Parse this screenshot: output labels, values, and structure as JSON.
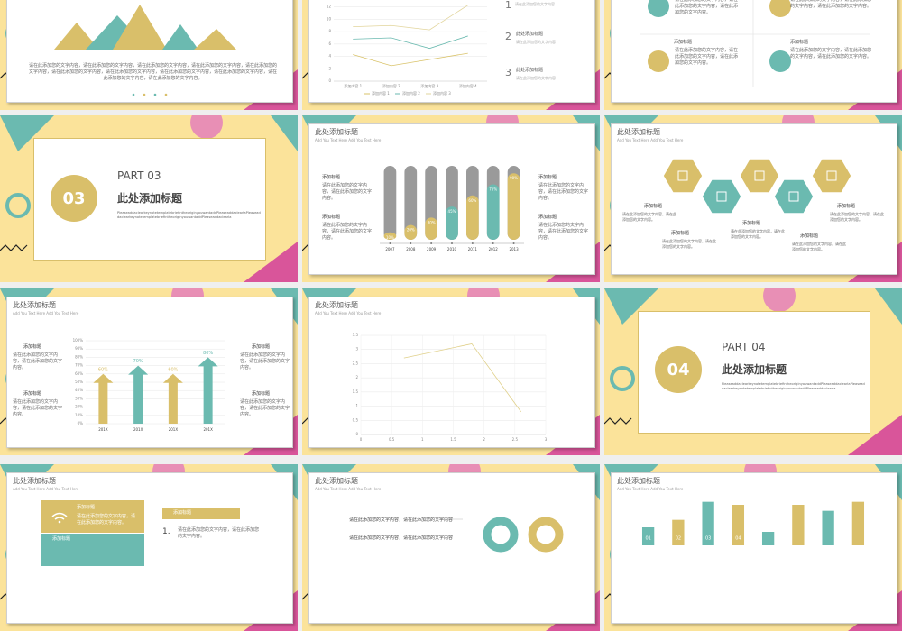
{
  "slides": [
    {
      "body": "请在此添加您的文字内容，请在此添加您的文字内容，请在此添加您的文字内容，请在此添加您的文字内容，请在此添加您的文字内容，请在此添加您的文字内容，请在此添加您的文字内容，请在此添加您的文字内容，请在此添加您的文字内容，请在此添加您的文字内容，请在此添加您的文字内容。"
    },
    {
      "chart_data": {
        "type": "line",
        "categories": [
          "添加内容 1",
          "添加内容 2",
          "添加内容 3",
          "添加内容 4"
        ],
        "series": [
          {
            "name": "添加内容 1",
            "color": "#d9c36a",
            "values": [
              4.3,
              2.5,
              3.5,
              4.5
            ]
          },
          {
            "name": "添加内容 2",
            "color": "#6bbab0",
            "values": [
              6.8,
              7,
              5.3,
              7.3
            ]
          },
          {
            "name": "添加内容 3",
            "color": "#e2d59c",
            "values": [
              8.8,
              9,
              8.3,
              12.3
            ]
          }
        ],
        "ylim": [
          0,
          14
        ],
        "yticks": [
          0,
          2,
          4,
          6,
          8,
          10,
          12
        ],
        "grid": true
      },
      "items": [
        {
          "num": 1,
          "sub": "请在此添加您的文字内容"
        },
        {
          "num": 2,
          "title": "此处添加标题",
          "sub": "请在此添加您的文字内容"
        },
        {
          "num": 3,
          "title": "此处添加标题",
          "sub": "请在此添加您的文字内容"
        }
      ]
    },
    {
      "items": [
        {
          "body": "请在此添加您的文字内容，请在此添加您的文字内容，请在此添加您的文字内容。"
        },
        {
          "body": "请在此添加您的文字内容，请在此添加您的文字内容，请在此添加您的文字内容。"
        },
        {
          "title": "添加标题",
          "body": "请在此添加您的文字内容，请在此添加您的文字内容，请在此添加您的文字内容。"
        },
        {
          "title": "添加标题",
          "body": "请在此添加您的文字内容，请在此添加您的文字内容，请在此添加您的文字内容。"
        }
      ]
    },
    {
      "number": "03",
      "part": "PART 03",
      "title": "此处添加标题",
      "body": "PleaseaddaclearkeynotetemplatebriefintheoriginyouwantaddPleaseaddaclearlaPleaseaddaclearkeynotetemplatebriefintheoriginyouwantaddPleaseaddaclearla"
    },
    {
      "title": "此处添加标题",
      "subtitle": "Add You Text Here Add You Text Here",
      "items": [
        {
          "title": "添加标题",
          "body": "请在此添加您的文字内容，请在此添加您的文字内容。"
        },
        {
          "title": "添加标题",
          "body": "请在此添加您的文字内容，请在此添加您的文字内容。"
        },
        {
          "title": "添加标题",
          "body": "请在此添加您的文字内容，请在此添加您的文字内容。"
        },
        {
          "title": "添加标题",
          "body": "请在此添加您的文字内容，请在此添加您的文字内容。"
        }
      ],
      "chart_data": {
        "type": "pill",
        "categories": [
          "2007",
          "2008",
          "2009",
          "2010",
          "2011",
          "2012",
          "2013"
        ],
        "values": [
          10,
          20,
          30,
          45,
          60,
          75,
          90
        ],
        "value_labels": [
          "10%",
          "20%",
          "30%",
          "45%",
          "60%",
          "75%",
          "90%"
        ],
        "ylim": [
          0,
          100
        ],
        "colors": [
          "#d9bf6a",
          "#d9bf6a",
          "#d9bf6a",
          "#6bbab0",
          "#d9bf6a",
          "#6bbab0",
          "#d9bf6a"
        ]
      }
    },
    {
      "title": "此处添加标题",
      "subtitle": "Add You Text Here Add You Text Here",
      "items": [
        {
          "title": "添加标题",
          "body": "请在此添加您的文字内容，请在此添加您的文字内容。"
        },
        {
          "title": "添加标题",
          "body": "请在此添加您的文字内容，请在此添加您的文字内容。"
        },
        {
          "title": "添加标题",
          "body": "请在此添加您的文字内容，请在此添加您的文字内容。"
        },
        {
          "title": "添加标题",
          "body": "请在此添加您的文字内容，请在此添加您的文字内容。"
        },
        {
          "title": "添加标题",
          "body": "请在此添加您的文字内容，请在此添加您的文字内容。"
        }
      ]
    },
    {
      "title": "此处添加标题",
      "subtitle": "Add You Text Here Add You Text Here",
      "items": [
        {
          "title": "添加标题",
          "body": "请在此添加您的文字内容，请在此添加您的文字内容。"
        },
        {
          "title": "添加标题",
          "body": "请在此添加您的文字内容，请在此添加您的文字内容。"
        },
        {
          "title": "添加标题",
          "body": "请在此添加您的文字内容，请在此添加您的文字内容。"
        },
        {
          "title": "添加标题",
          "body": "请在此添加您的文字内容，请在此添加您的文字内容。"
        }
      ],
      "chart_data": {
        "type": "arrow",
        "categories": [
          "201X",
          "201X",
          "201X",
          "201X"
        ],
        "values": [
          60,
          70,
          60,
          80
        ],
        "value_labels": [
          "60%",
          "70%",
          "60%",
          "80%"
        ],
        "colors": [
          "#d9bf6a",
          "#6bbab0",
          "#d9bf6a",
          "#6bbab0"
        ],
        "ylim": [
          0,
          100
        ],
        "yticks": [
          {
            "value": 0,
            "label": "0%"
          },
          {
            "value": 10,
            "label": "10%"
          },
          {
            "value": 20,
            "label": "20%"
          },
          {
            "value": 30,
            "label": "30%"
          },
          {
            "value": 40,
            "label": "40%"
          },
          {
            "value": 50,
            "label": "50%"
          },
          {
            "value": 60,
            "label": "60%"
          },
          {
            "value": 70,
            "label": "70%"
          },
          {
            "value": 80,
            "label": "80%"
          },
          {
            "value": 90,
            "label": "90%"
          },
          {
            "value": 100,
            "label": "100%"
          }
        ],
        "grid": true
      }
    },
    {
      "title": "此处添加标题",
      "subtitle": "Add You Text Here Add You Text Here",
      "chart_data": {
        "type": "line",
        "x": [
          0.7,
          1.8,
          2.6
        ],
        "values": [
          2.7,
          3.2,
          0.8
        ],
        "color": "#e0d08a",
        "xlim": [
          0,
          3
        ],
        "xticks": [
          0,
          0.5,
          1,
          1.5,
          2,
          2.5,
          3
        ],
        "ylim": [
          0,
          3.5
        ],
        "yticks": [
          0,
          0.5,
          1,
          1.5,
          2,
          2.5,
          3,
          3.5
        ],
        "grid": true
      }
    },
    {
      "number": "04",
      "part": "PART 04",
      "title": "此处添加标题",
      "body": "PleaseaddaclearkeynotetemplatebriefintheoriginyouwantaddPleaseaddaclearlaPleaseaddaclearkeynotetemplatebriefintheoriginyouwantaddPleaseaddaclearla"
    },
    {
      "title": "此处添加标题",
      "subtitle": "Add You Text Here Add You Text Here",
      "box": [
        {
          "title": "添加标题",
          "body": "请在此添加您的文字内容，请在此添加您的文字内容。"
        },
        {
          "title": "添加标题"
        }
      ],
      "header": "添加标题",
      "list": [
        {
          "num": "1.",
          "body": "请在此添加您的文字内容，请在此添加您的文字内容。"
        }
      ]
    },
    {
      "title": "此处添加标题",
      "subtitle": "Add You Text Here Add You Text Here",
      "texts": [
        "请在此添加您的文字内容，请在此添加您的文字内容",
        "请在此添加您的文字内容，请在此添加您的文字内容"
      ]
    },
    {
      "title": "此处添加标题",
      "subtitle": "Add You Text Here Add You Text Here",
      "chart_data": {
        "type": "bar",
        "categories": [
          "01",
          "02",
          "03",
          "04",
          null,
          null,
          null,
          null
        ],
        "values": [
          24,
          34,
          58,
          54,
          18,
          54,
          46,
          58
        ],
        "colors": [
          "#6bbab0",
          "#d9bf6a",
          "#6bbab0",
          "#d9bf6a",
          "#6bbab0",
          "#d9bf6a",
          "#6bbab0",
          "#d9bf6a"
        ],
        "ylim": [
          0,
          60
        ]
      }
    }
  ]
}
